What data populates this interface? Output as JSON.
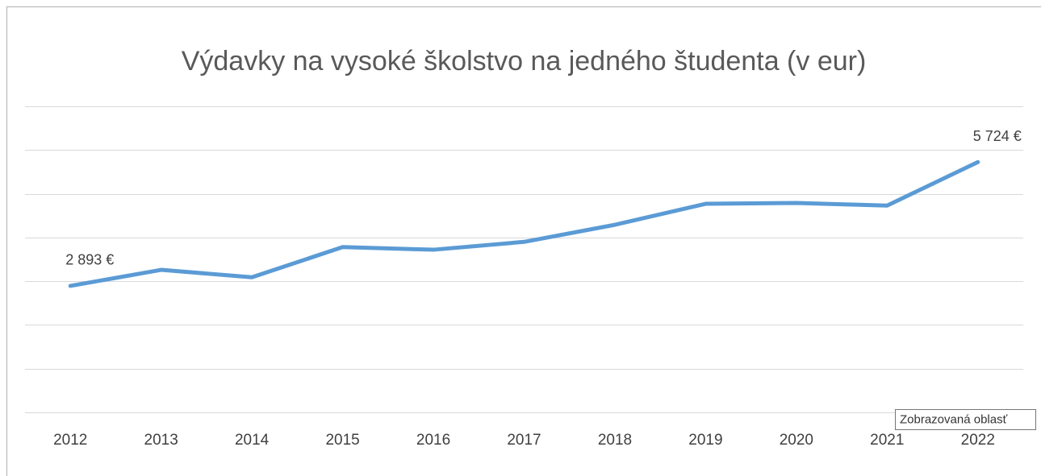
{
  "chart_data": {
    "type": "line",
    "title": "Výdavky na vysoké školstvo na jedného študenta (v eur)",
    "categories": [
      "2012",
      "2013",
      "2014",
      "2015",
      "2016",
      "2017",
      "2018",
      "2019",
      "2020",
      "2021",
      "2022"
    ],
    "series": [
      {
        "name": "Výdavky",
        "color": "#5b9bd5",
        "values": [
          2893,
          3260,
          3090,
          3780,
          3720,
          3900,
          4290,
          4770,
          4790,
          4730,
          5724
        ],
        "value_labels": [
          "2 893 €",
          null,
          null,
          null,
          null,
          null,
          null,
          null,
          null,
          null,
          "5 724 €"
        ]
      }
    ],
    "ylim": [
      0,
      7000
    ],
    "yticks": [
      0,
      1000,
      2000,
      3000,
      4000,
      5000,
      6000,
      7000
    ],
    "grid": true,
    "tooltip": "Zobrazovaná oblasť"
  }
}
